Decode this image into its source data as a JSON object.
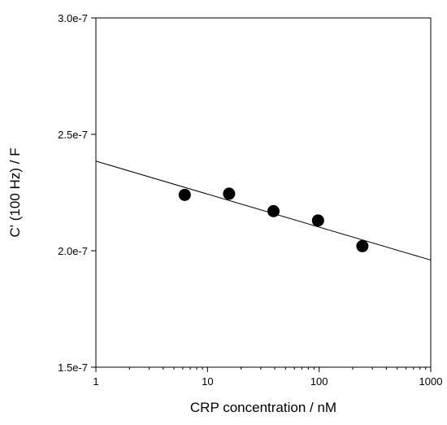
{
  "chart_data": {
    "type": "scatter",
    "title": "",
    "xlabel": "CRP concentration / nM",
    "ylabel": "C' (100 Hz) / F",
    "x_scale": "log",
    "xlim": [
      1,
      1000
    ],
    "ylim": [
      1.5e-07,
      3e-07
    ],
    "x_ticks": [
      {
        "value": 1,
        "label": "1"
      },
      {
        "value": 10,
        "label": "10"
      },
      {
        "value": 100,
        "label": "100"
      },
      {
        "value": 1000,
        "label": "1000"
      }
    ],
    "y_ticks": [
      {
        "value": 1.5e-07,
        "label": "1.5e-7"
      },
      {
        "value": 2e-07,
        "label": "2.0e-7"
      },
      {
        "value": 2.5e-07,
        "label": "2.5e-7"
      },
      {
        "value": 3e-07,
        "label": "3.0e-7"
      }
    ],
    "grid": false,
    "series": [
      {
        "marker": "filled-circle",
        "color": "#000000",
        "points": [
          {
            "x": 6.25,
            "y": 2.24e-07
          },
          {
            "x": 15.6,
            "y": 2.245e-07
          },
          {
            "x": 39,
            "y": 2.17e-07
          },
          {
            "x": 97.7,
            "y": 2.13e-07
          },
          {
            "x": 244,
            "y": 2.02e-07
          }
        ]
      }
    ],
    "fit_line": {
      "color": "#000000",
      "points": [
        {
          "x": 1,
          "y": 2.385e-07
        },
        {
          "x": 1000,
          "y": 1.96e-07
        }
      ]
    }
  }
}
